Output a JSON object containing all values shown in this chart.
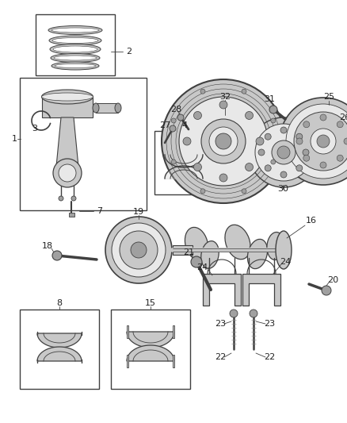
{
  "background_color": "#ffffff",
  "line_color": "#404040",
  "gray_fill": "#c8c8c8",
  "gray_dark": "#a0a0a0",
  "gray_light": "#e8e8e8",
  "figsize": [
    4.38,
    5.33
  ],
  "dpi": 100
}
